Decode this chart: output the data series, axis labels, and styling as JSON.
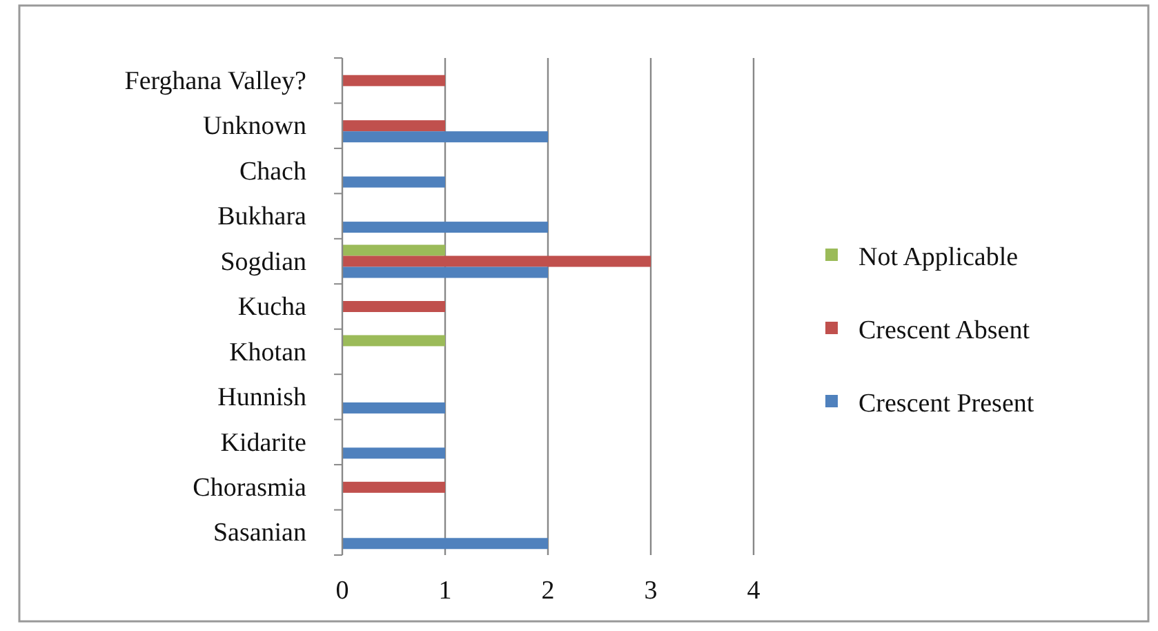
{
  "chart_data": {
    "type": "bar",
    "orientation": "horizontal",
    "categories": [
      "Ferghana Valley?",
      "Unknown",
      "Chach",
      "Bukhara",
      "Sogdian",
      "Kucha",
      "Khotan",
      "Hunnish",
      "Kidarite",
      "Chorasmia",
      "Sasanian"
    ],
    "series": [
      {
        "name": "Not Applicable",
        "color": "#9bbb59",
        "values": [
          0,
          0,
          0,
          0,
          1,
          0,
          1,
          0,
          0,
          0,
          0
        ]
      },
      {
        "name": "Crescent Absent",
        "color": "#c0504d",
        "values": [
          1,
          1,
          0,
          0,
          3,
          1,
          0,
          0,
          0,
          1,
          0
        ]
      },
      {
        "name": "Crescent Present",
        "color": "#4f81bd",
        "values": [
          0,
          2,
          1,
          2,
          2,
          0,
          0,
          1,
          1,
          0,
          2
        ]
      }
    ],
    "xlim": [
      0,
      4
    ],
    "xticks": [
      0,
      1,
      2,
      3,
      4
    ],
    "grid": "x",
    "legend": "right"
  }
}
